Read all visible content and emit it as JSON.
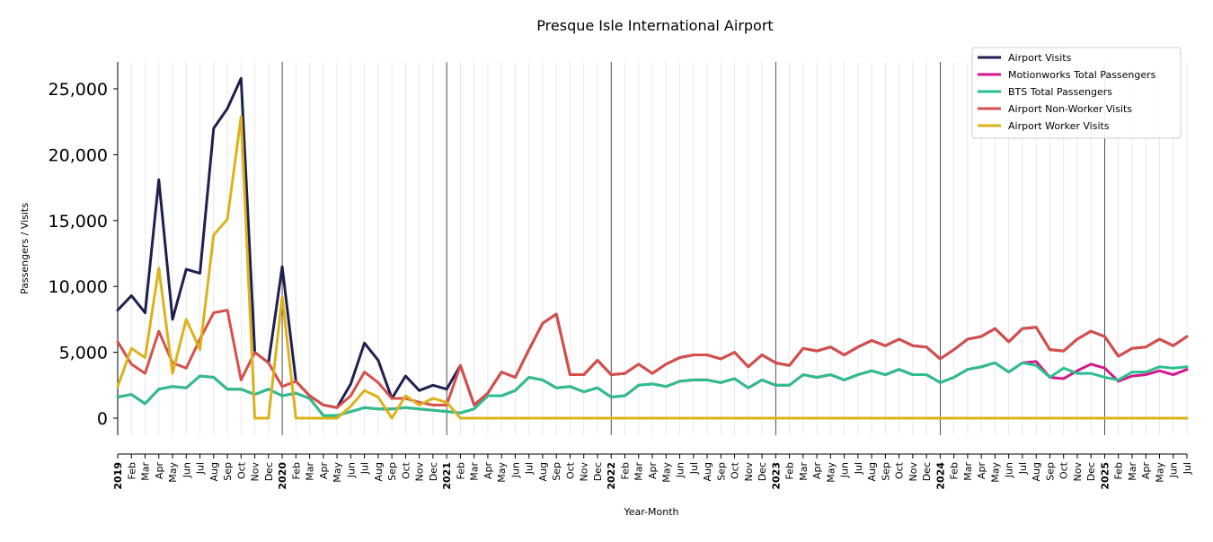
{
  "chart_data": {
    "type": "line",
    "title": "Presque Isle International Airport",
    "xlabel": "Year-Month",
    "ylabel": "Passengers / Visits",
    "ylim": [
      -1300,
      27000
    ],
    "yticks": [
      0,
      5000,
      10000,
      15000,
      20000,
      25000
    ],
    "ytick_labels": [
      "0",
      "5,000",
      "10,000",
      "15,000",
      "20,000",
      "25,000"
    ],
    "grid": "vertical monthly lines; darker line at each January",
    "legend_position": "top-right",
    "x": [
      "2019",
      "Feb",
      "Mar",
      "Apr",
      "May",
      "Jun",
      "Jul",
      "Aug",
      "Sep",
      "Oct",
      "Nov",
      "Dec",
      "2020",
      "Feb",
      "Mar",
      "Apr",
      "May",
      "Jun",
      "Jul",
      "Aug",
      "Sep",
      "Oct",
      "Nov",
      "Dec",
      "2021",
      "Feb",
      "Mar",
      "Apr",
      "May",
      "Jun",
      "Jul",
      "Aug",
      "Sep",
      "Oct",
      "Nov",
      "Dec",
      "2022",
      "Feb",
      "Mar",
      "Apr",
      "May",
      "Jun",
      "Jul",
      "Aug",
      "Sep",
      "Oct",
      "Nov",
      "Dec",
      "2023",
      "Feb",
      "Mar",
      "Apr",
      "May",
      "Jun",
      "Jul",
      "Aug",
      "Sep",
      "Oct",
      "Nov",
      "Dec",
      "2024",
      "Feb",
      "Mar",
      "Apr",
      "May",
      "Jun",
      "Jul",
      "Aug",
      "Sep",
      "Oct",
      "Nov",
      "Dec",
      "2025",
      "Feb",
      "Mar",
      "Apr",
      "May",
      "Jun",
      "Jul"
    ],
    "series": [
      {
        "name": "Airport Visits",
        "color": "#1f2050",
        "values": [
          8200,
          9300,
          8000,
          18100,
          7500,
          11300,
          11000,
          22000,
          23500,
          25800,
          5000,
          4200,
          11500,
          2800,
          1700,
          1000,
          800,
          2600,
          5700,
          4400,
          1500,
          3200,
          2100,
          2500,
          2200,
          4000,
          1000,
          1900,
          3500,
          3100,
          5200,
          7200,
          7900,
          3300,
          3300,
          4400,
          3300,
          3400,
          4100,
          3400,
          4100,
          4600,
          4800,
          4800,
          4500,
          5000,
          3900,
          4800,
          4200,
          4000,
          5300,
          5100,
          5400,
          4800,
          5400,
          5900,
          5500,
          6000,
          5500,
          5400,
          4500,
          5200,
          6000,
          6200,
          6800,
          5800,
          6800,
          6900,
          5200,
          5100,
          6000,
          6600,
          6200,
          4700,
          5300,
          5400,
          6000,
          5500,
          6200
        ]
      },
      {
        "name": "Motionworks Total Passengers",
        "color": "#d4178c",
        "values": [
          1600,
          1800,
          1100,
          2200,
          2400,
          2300,
          3200,
          3100,
          2200,
          2200,
          1800,
          2200,
          1700,
          1900,
          1500,
          200,
          200,
          500,
          800,
          700,
          700,
          800,
          700,
          600,
          500,
          400,
          700,
          1700,
          1700,
          2100,
          3100,
          2900,
          2300,
          2400,
          2000,
          2300,
          1600,
          1700,
          2500,
          2600,
          2400,
          2800,
          2900,
          2900,
          2700,
          3000,
          2300,
          2900,
          2500,
          2500,
          3300,
          3100,
          3300,
          2900,
          3300,
          3600,
          3300,
          3700,
          3300,
          3300,
          2700,
          3100,
          3700,
          3900,
          4200,
          3500,
          4200,
          4300,
          3100,
          3000,
          3600,
          4100,
          3800,
          2800,
          3200,
          3300,
          3600,
          3300,
          3700
        ]
      },
      {
        "name": "BTS Total Passengers",
        "color": "#2bbf8e",
        "values": [
          1600,
          1800,
          1100,
          2200,
          2400,
          2300,
          3200,
          3100,
          2200,
          2200,
          1800,
          2200,
          1700,
          1900,
          1500,
          200,
          200,
          500,
          800,
          700,
          700,
          800,
          700,
          600,
          500,
          400,
          700,
          1700,
          1700,
          2100,
          3100,
          2900,
          2300,
          2400,
          2000,
          2300,
          1600,
          1700,
          2500,
          2600,
          2400,
          2800,
          2900,
          2900,
          2700,
          3000,
          2300,
          2900,
          2500,
          2500,
          3300,
          3100,
          3300,
          2900,
          3300,
          3600,
          3300,
          3700,
          3300,
          3300,
          2700,
          3100,
          3700,
          3900,
          4200,
          3500,
          4200,
          4000,
          3100,
          3800,
          3400,
          3400,
          3100,
          2900,
          3500,
          3500,
          3900,
          3800,
          3900
        ]
      },
      {
        "name": "Airport Non-Worker Visits",
        "color": "#d64f4a",
        "values": [
          5800,
          4100,
          3400,
          6600,
          4200,
          3800,
          6000,
          8000,
          8200,
          2900,
          5000,
          4200,
          2400,
          2800,
          1700,
          1000,
          800,
          1700,
          3500,
          2700,
          1500,
          1500,
          1200,
          1000,
          1000,
          4000,
          1000,
          1900,
          3500,
          3100,
          5200,
          7200,
          7900,
          3300,
          3300,
          4400,
          3300,
          3400,
          4100,
          3400,
          4100,
          4600,
          4800,
          4800,
          4500,
          5000,
          3900,
          4800,
          4200,
          4000,
          5300,
          5100,
          5400,
          4800,
          5400,
          5900,
          5500,
          6000,
          5500,
          5400,
          4500,
          5200,
          6000,
          6200,
          6800,
          5800,
          6800,
          6900,
          5200,
          5100,
          6000,
          6600,
          6200,
          4700,
          5300,
          5400,
          6000,
          5500,
          6200
        ]
      },
      {
        "name": "Airport Worker Visits",
        "color": "#dcb21b",
        "values": [
          2400,
          5300,
          4600,
          11400,
          3400,
          7500,
          5200,
          13900,
          15100,
          22900,
          0,
          0,
          9200,
          0,
          0,
          0,
          0,
          900,
          2100,
          1600,
          0,
          1700,
          1000,
          1500,
          1200,
          0,
          0,
          0,
          0,
          0,
          0,
          0,
          0,
          0,
          0,
          0,
          0,
          0,
          0,
          0,
          0,
          0,
          0,
          0,
          0,
          0,
          0,
          0,
          0,
          0,
          0,
          0,
          0,
          0,
          0,
          0,
          0,
          0,
          0,
          0,
          0,
          0,
          0,
          0,
          0,
          0,
          0,
          0,
          0,
          0,
          0,
          0,
          0,
          0,
          0,
          0,
          0,
          0,
          0
        ]
      }
    ]
  }
}
